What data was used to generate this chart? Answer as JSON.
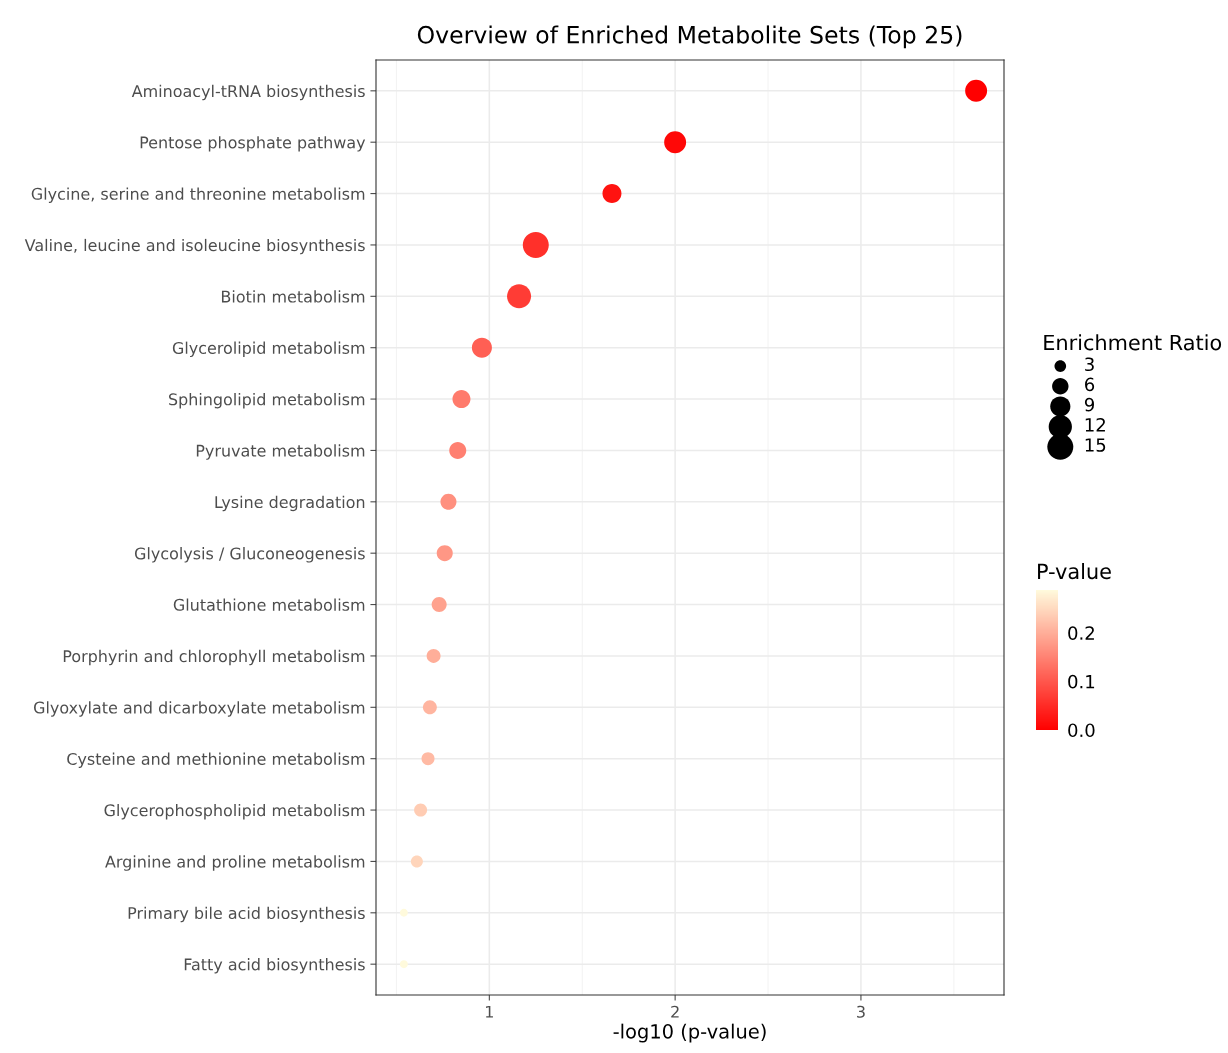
{
  "chart_data": {
    "type": "bubble",
    "orientation": "horizontal",
    "title": "Overview of Enriched Metabolite Sets (Top 25)",
    "xlabel": "-log10 (p-value)",
    "legend_title": "Enrichment Ratio",
    "clabel": "P-value",
    "categories": [
      "Aminoacyl-tRNA biosynthesis",
      "Pentose phosphate pathway",
      "Glycine, serine and threonine metabolism",
      "Valine, leucine and isoleucine biosynthesis",
      "Biotin metabolism",
      "Glycerolipid metabolism",
      "Sphingolipid metabolism",
      "Pyruvate metabolism",
      "Lysine degradation",
      "Glycolysis / Gluconeogenesis",
      "Glutathione metabolism",
      "Porphyrin and chlorophyll metabolism",
      "Glyoxylate and dicarboxylate metabolism",
      "Cysteine and methionine metabolism",
      "Glycerophospholipid metabolism",
      "Arginine and proline metabolism",
      "Primary bile acid biosynthesis",
      "Fatty acid biosynthesis"
    ],
    "values": [
      3.62,
      2.0,
      1.66,
      1.25,
      1.16,
      0.96,
      0.85,
      0.83,
      0.78,
      0.76,
      0.73,
      0.7,
      0.68,
      0.67,
      0.63,
      0.61,
      0.54,
      0.54
    ],
    "sizes": [
      10.7,
      10.7,
      8,
      15,
      12.8,
      8.9,
      7.2,
      6.4,
      5.7,
      5.7,
      5,
      4.3,
      4.3,
      3.75,
      3.75,
      3.2,
      1.4,
      1.4
    ],
    "size_legend": [
      3,
      6,
      9,
      12,
      15
    ],
    "cvalues": [
      0.0002,
      0.01,
      0.022,
      0.056,
      0.069,
      0.11,
      0.141,
      0.148,
      0.166,
      0.174,
      0.186,
      0.2,
      0.209,
      0.214,
      0.234,
      0.245,
      0.288,
      0.288
    ],
    "clim": [
      0,
      0.288
    ],
    "cticks": [
      {
        "value": 0,
        "label": "0.0"
      },
      0.1,
      0.2
    ],
    "xlim": [
      0.39,
      3.77
    ],
    "xticks": [
      1,
      2,
      3
    ],
    "grid": true
  }
}
